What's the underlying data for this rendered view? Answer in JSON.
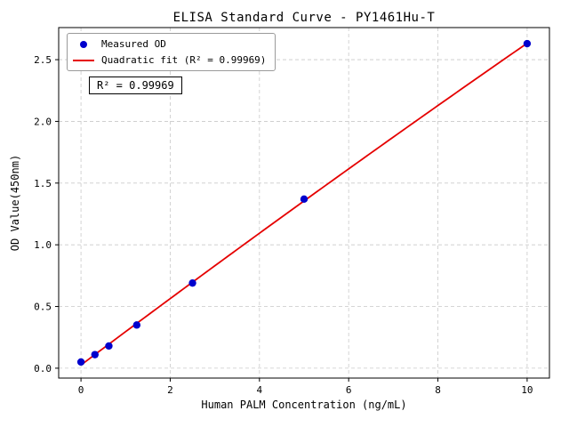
{
  "chart_data": {
    "type": "scatter",
    "title": "ELISA Standard Curve - PY1461Hu-T",
    "xlabel": "Human PALM Concentration (ng/mL)",
    "ylabel": "OD Value(450nm)",
    "series": [
      {
        "name": "Measured OD",
        "type": "scatter",
        "x": [
          0,
          0.3125,
          0.625,
          1.25,
          2.5,
          5,
          10
        ],
        "y": [
          0.05,
          0.11,
          0.18,
          0.35,
          0.69,
          1.37,
          2.63
        ]
      },
      {
        "name": "Quadratic fit (R² = 0.99969)",
        "type": "line",
        "fit": "quadratic",
        "x_range": [
          0,
          10
        ]
      }
    ],
    "legend": [
      {
        "label": "Measured OD",
        "marker": "dot"
      },
      {
        "label": "Quadratic fit (R² = 0.99969)",
        "marker": "line"
      }
    ],
    "legend_position": "upper-left",
    "annotation": "R² = 0.99969",
    "r_squared": 0.99969,
    "x_ticks": {
      "values": [
        0,
        2,
        4,
        6,
        8,
        10
      ],
      "labels": [
        "0",
        "2",
        "4",
        "6",
        "8",
        "10"
      ]
    },
    "y_ticks": {
      "values": [
        0.0,
        0.5,
        1.0,
        1.5,
        2.0,
        2.5
      ],
      "labels": [
        "0.0",
        "0.5",
        "1.0",
        "1.5",
        "2.0",
        "2.5"
      ]
    },
    "xlim": [
      -0.5,
      10.5
    ],
    "ylim": [
      -0.08,
      2.76
    ],
    "grid": true,
    "colors": {
      "marker": "#0000cd",
      "fit_line": "#e50000",
      "grid": "#c9c9c9",
      "axis": "#000000"
    }
  }
}
